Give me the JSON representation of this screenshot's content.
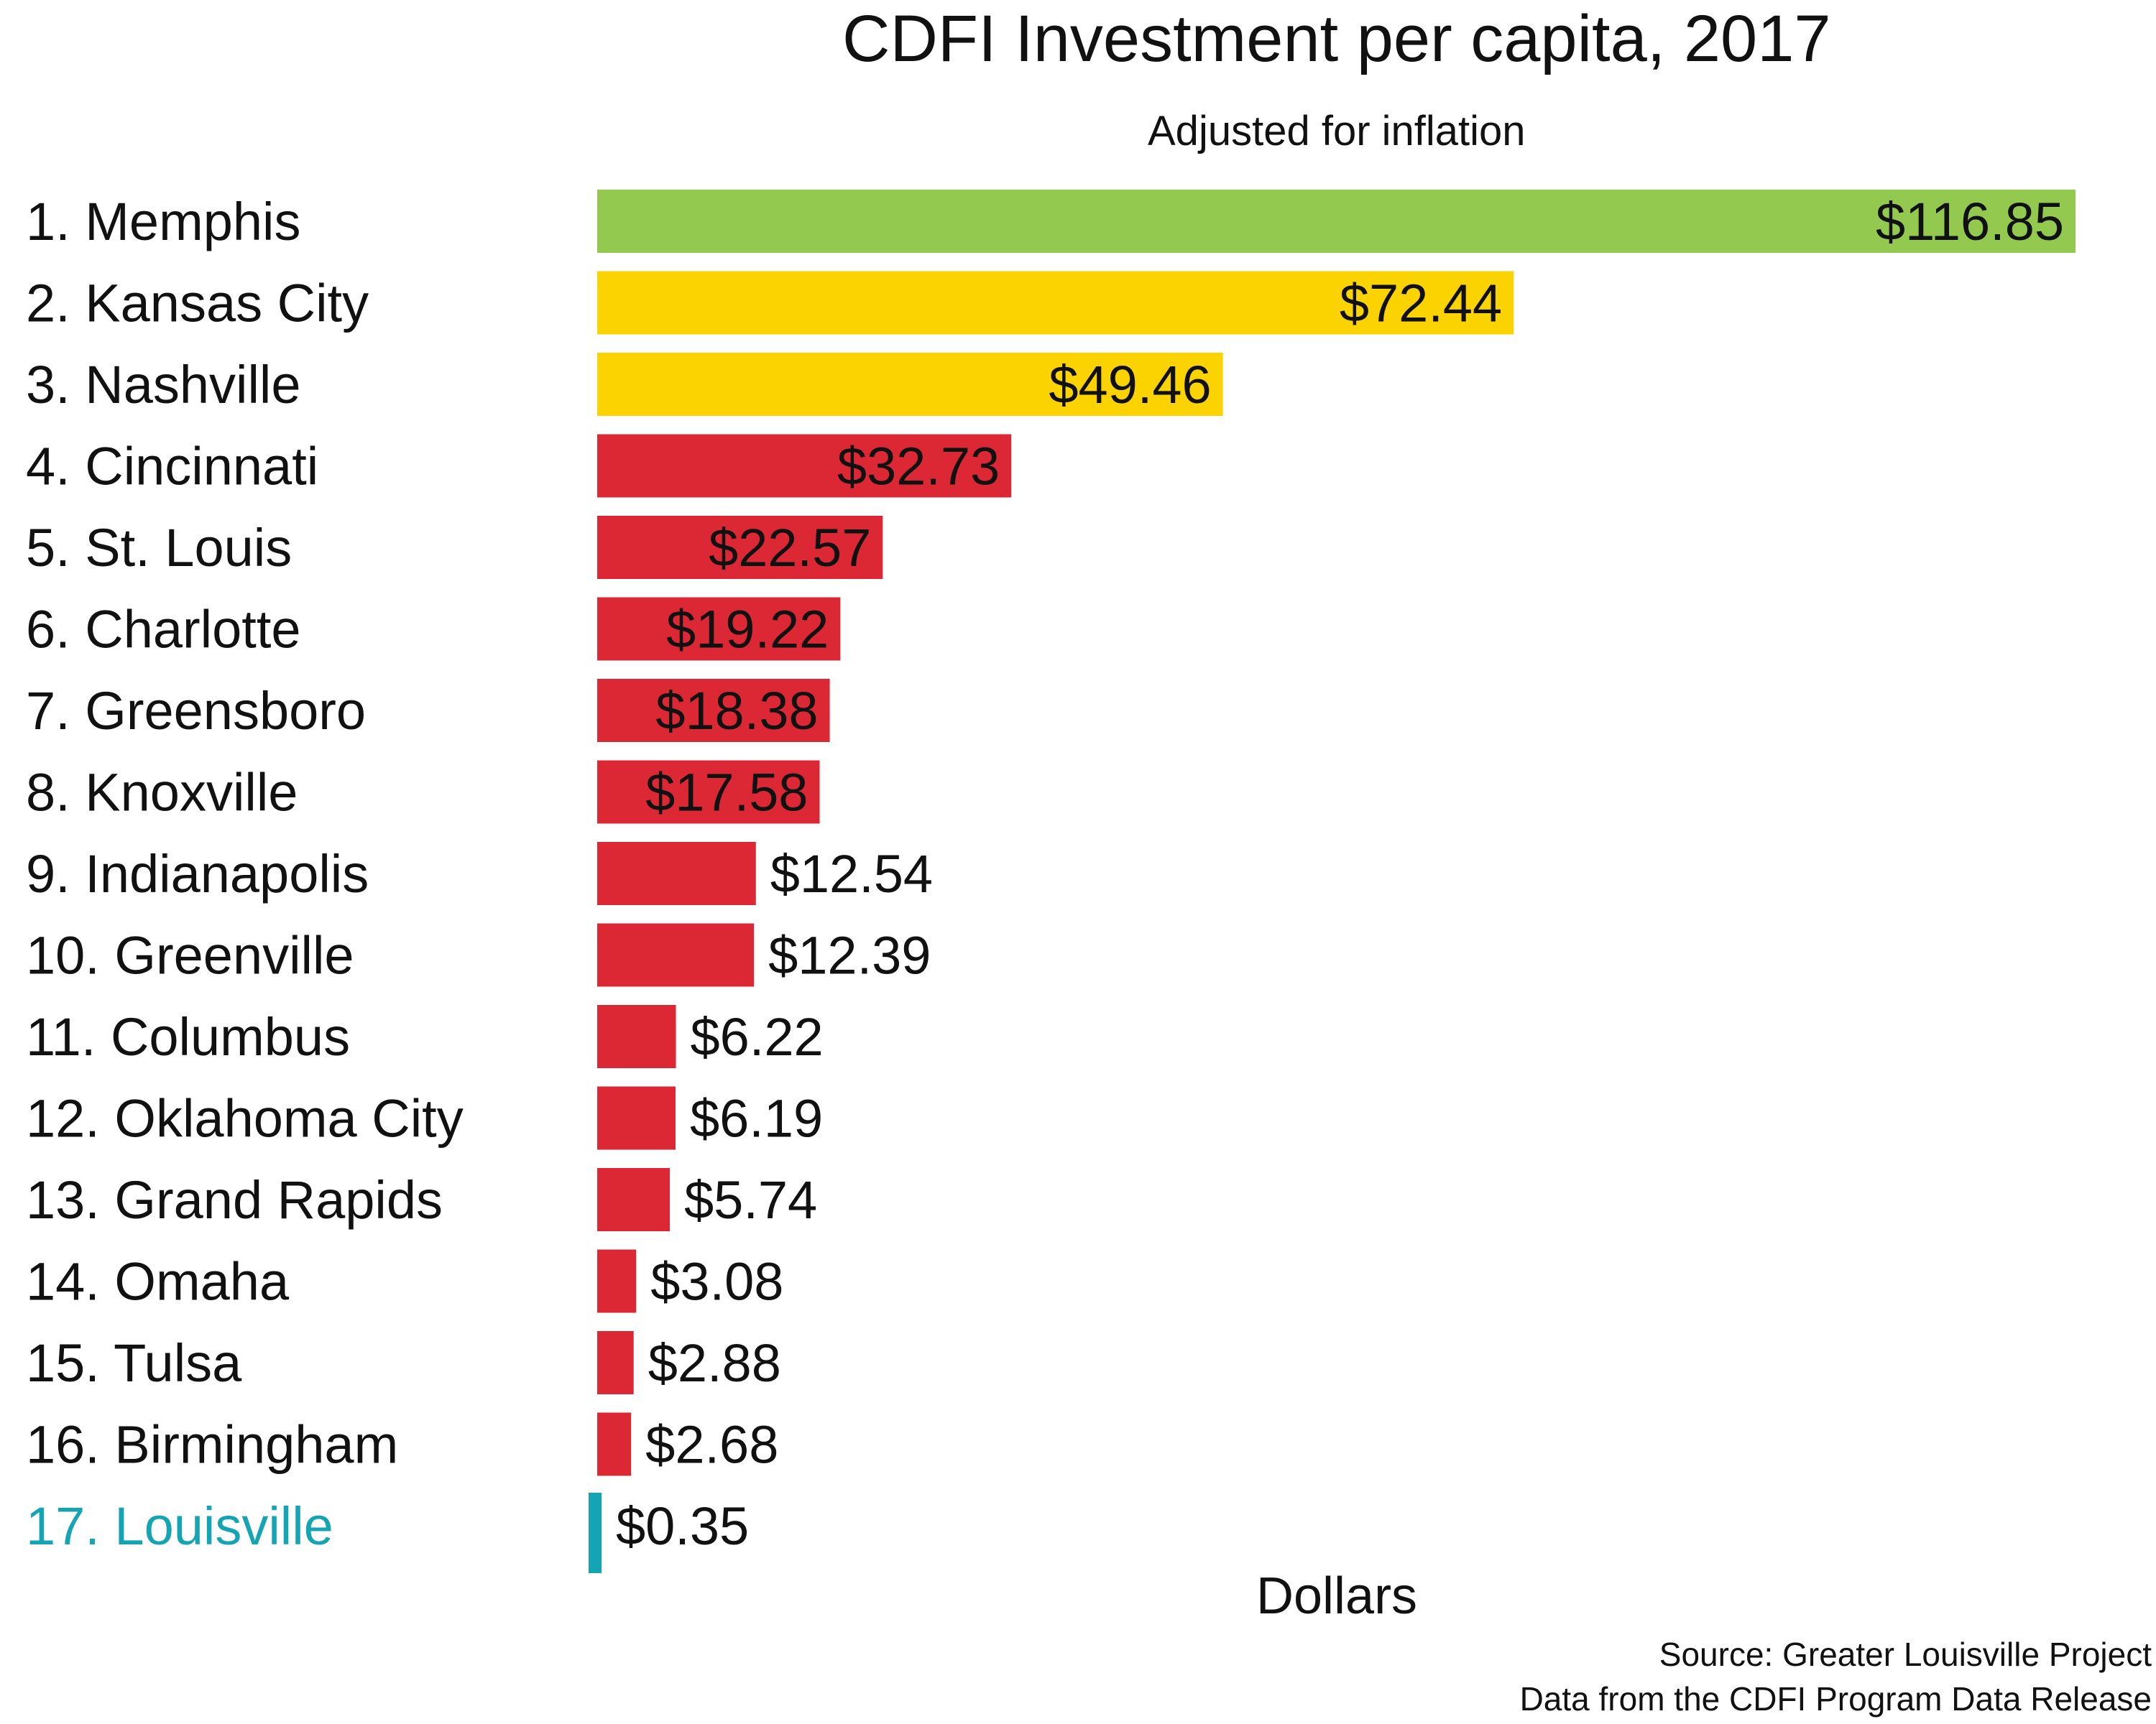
{
  "chart_data": {
    "type": "bar",
    "orientation": "horizontal",
    "title": "CDFI Investment per capita, 2017",
    "subtitle": "Adjusted for inflation",
    "xlabel": "Dollars",
    "ylabel": "",
    "xlim": [
      0,
      116.85
    ],
    "grid": false,
    "legend": "none",
    "categories": [
      "1. Memphis",
      "2. Kansas City",
      "3. Nashville",
      "4. Cincinnati",
      "5. St. Louis",
      "6. Charlotte",
      "7. Greensboro",
      "8. Knoxville",
      "9. Indianapolis",
      "10. Greenville",
      "11. Columbus",
      "12. Oklahoma City",
      "13. Grand Rapids",
      "14. Omaha",
      "15. Tulsa",
      "16. Birmingham",
      "17. Louisville"
    ],
    "values": [
      116.85,
      72.44,
      49.46,
      32.73,
      22.57,
      19.22,
      18.38,
      17.58,
      12.54,
      12.39,
      6.22,
      6.19,
      5.74,
      3.08,
      2.88,
      2.68,
      0.35
    ],
    "data_labels": [
      "$116.85",
      "$72.44",
      "$49.46",
      "$32.73",
      "$22.57",
      "$19.22",
      "$18.38",
      "$17.58",
      "$12.54",
      "$12.39",
      "$6.22",
      "$6.19",
      "$5.74",
      "$3.08",
      "$2.88",
      "$2.68",
      "$0.35"
    ],
    "bar_colors": [
      "#92c94e",
      "#fbd300",
      "#fbd300",
      "#dc2735",
      "#dc2735",
      "#dc2735",
      "#dc2735",
      "#dc2735",
      "#dc2735",
      "#dc2735",
      "#dc2735",
      "#dc2735",
      "#dc2735",
      "#dc2735",
      "#dc2735",
      "#dc2735",
      "#14a4b4"
    ],
    "highlight_color": "#14a4b4",
    "highlight_index": 16
  },
  "source": {
    "line1": "Source: Greater Louisville Project",
    "line2": "Data from the CDFI Program Data Release"
  }
}
